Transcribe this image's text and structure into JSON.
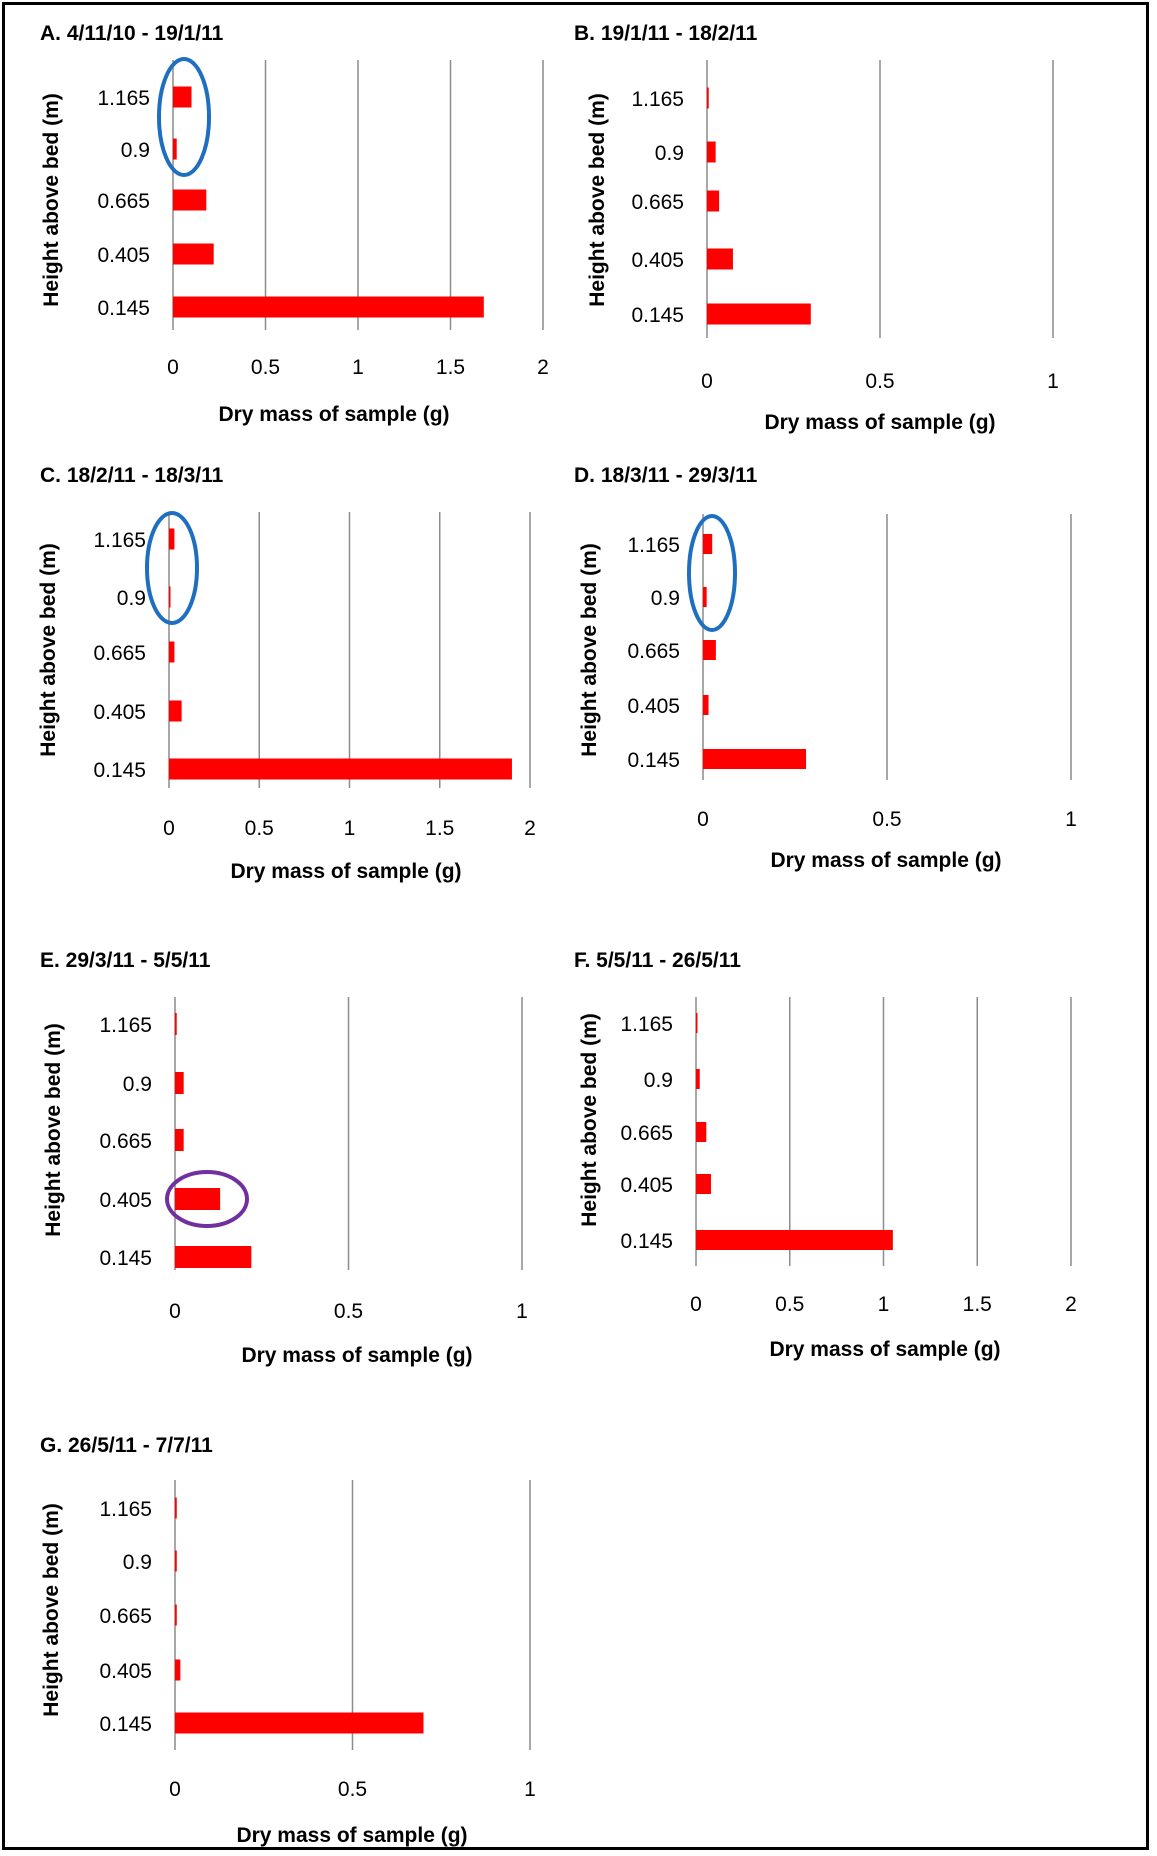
{
  "colors": {
    "bar": "#ff0000",
    "grid": "#8c8c8c",
    "highlight_blue": "#1f6fc0",
    "highlight_purple": "#7030a0"
  },
  "chart_data": [
    {
      "type": "bar",
      "orientation": "horizontal",
      "title": "A. 4/11/10 - 19/1/11",
      "xlabel": "Dry mass of sample (g)",
      "ylabel": "Height above bed (m)",
      "categories": [
        "1.165",
        "0.9",
        "0.665",
        "0.405",
        "0.145"
      ],
      "values": [
        0.1,
        0.02,
        0.18,
        0.22,
        1.68
      ],
      "xlim": [
        0,
        2
      ],
      "xticks": [
        "0",
        "0.5",
        "1",
        "1.5",
        "2"
      ],
      "grid": "vertical",
      "highlights": [
        {
          "categories": [
            "1.165",
            "0.9"
          ],
          "color": "blue"
        }
      ]
    },
    {
      "type": "bar",
      "orientation": "horizontal",
      "title": "B. 19/1/11 - 18/2/11",
      "xlabel": "Dry mass of sample (g)",
      "ylabel": "Height above bed (m)",
      "categories": [
        "1.165",
        "0.9",
        "0.665",
        "0.405",
        "0.145"
      ],
      "values": [
        0.005,
        0.025,
        0.035,
        0.075,
        0.3
      ],
      "xlim": [
        0,
        1
      ],
      "xticks": [
        "0",
        "0.5",
        "1"
      ],
      "grid": "vertical",
      "highlights": []
    },
    {
      "type": "bar",
      "orientation": "horizontal",
      "title": "C. 18/2/11 - 18/3/11",
      "xlabel": "Dry mass of sample (g)",
      "ylabel": "Height above bed (m)",
      "categories": [
        "1.165",
        "0.9",
        "0.665",
        "0.405",
        "0.145"
      ],
      "values": [
        0.03,
        0.005,
        0.03,
        0.07,
        1.9
      ],
      "xlim": [
        0,
        2
      ],
      "xticks": [
        "0",
        "0.5",
        "1",
        "1.5",
        "2"
      ],
      "grid": "vertical",
      "highlights": [
        {
          "categories": [
            "1.165",
            "0.9"
          ],
          "color": "blue"
        }
      ]
    },
    {
      "type": "bar",
      "orientation": "horizontal",
      "title": "D. 18/3/11  - 29/3/11",
      "xlabel": "Dry mass of sample (g)",
      "ylabel": "Height above bed (m)",
      "categories": [
        "1.165",
        "0.9",
        "0.665",
        "0.405",
        "0.145"
      ],
      "values": [
        0.025,
        0.01,
        0.035,
        0.015,
        0.28
      ],
      "xlim": [
        0,
        1
      ],
      "xticks": [
        "0",
        "0.5",
        "1"
      ],
      "grid": "vertical",
      "highlights": [
        {
          "categories": [
            "1.165",
            "0.9"
          ],
          "color": "blue"
        }
      ]
    },
    {
      "type": "bar",
      "orientation": "horizontal",
      "title": "E. 29/3/11 - 5/5/11",
      "xlabel": "Dry mass of sample (g)",
      "ylabel": "Height above bed (m)",
      "categories": [
        "1.165",
        "0.9",
        "0.665",
        "0.405",
        "0.145"
      ],
      "values": [
        0.005,
        0.025,
        0.025,
        0.13,
        0.22
      ],
      "xlim": [
        0,
        1
      ],
      "xticks": [
        "0",
        "0.5",
        "1"
      ],
      "grid": "vertical",
      "highlights": [
        {
          "categories": [
            "0.405"
          ],
          "color": "purple"
        }
      ]
    },
    {
      "type": "bar",
      "orientation": "horizontal",
      "title": "F. 5/5/11 - 26/5/11",
      "xlabel": "Dry mass of sample (g)",
      "ylabel": "Height above bed (m)",
      "categories": [
        "1.165",
        "0.9",
        "0.665",
        "0.405",
        "0.145"
      ],
      "values": [
        0.005,
        0.02,
        0.055,
        0.08,
        1.05
      ],
      "xlim": [
        0,
        2
      ],
      "xticks": [
        "0",
        "0.5",
        "1",
        "1.5",
        "2"
      ],
      "grid": "vertical",
      "highlights": []
    },
    {
      "type": "bar",
      "orientation": "horizontal",
      "title": "G. 26/5/11 - 7/7/11",
      "xlabel": "Dry mass of sample (g)",
      "ylabel": "Height above bed (m)",
      "categories": [
        "1.165",
        "0.9",
        "0.665",
        "0.405",
        "0.145"
      ],
      "values": [
        0.005,
        0.005,
        0.005,
        0.015,
        0.7
      ],
      "xlim": [
        0,
        1
      ],
      "xticks": [
        "0",
        "0.5",
        "1"
      ],
      "grid": "vertical",
      "highlights": []
    }
  ]
}
